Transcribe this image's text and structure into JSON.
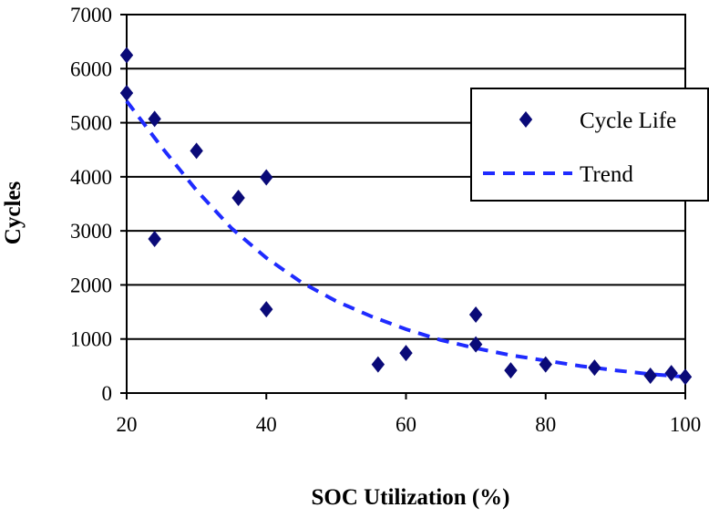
{
  "chart_data": {
    "type": "scatter",
    "title": "",
    "xlabel": "SOC Utilization (%)",
    "ylabel": "Cycles",
    "xlim": [
      20,
      100
    ],
    "ylim": [
      0,
      7000
    ],
    "x_ticks": [
      "20",
      "40",
      "60",
      "80",
      "100"
    ],
    "y_ticks": [
      "0",
      "1000",
      "2000",
      "3000",
      "4000",
      "5000",
      "6000",
      "7000"
    ],
    "grid": "horizontal",
    "legend_position": "top-right",
    "series": [
      {
        "name": "Cycle Life",
        "style": "diamond-markers",
        "color": "#0a0a78",
        "x": [
          20,
          20,
          24,
          24,
          30,
          36,
          40,
          40,
          56,
          60,
          70,
          70,
          75,
          80,
          87,
          95,
          98,
          100
        ],
        "y": [
          6250,
          5550,
          5070,
          2850,
          4480,
          3610,
          3990,
          1550,
          530,
          740,
          1450,
          900,
          420,
          530,
          470,
          320,
          370,
          300
        ]
      },
      {
        "name": "Trend",
        "style": "dashed-line",
        "color": "#1f2bff",
        "x": [
          20,
          25,
          30,
          35,
          40,
          45,
          50,
          55,
          60,
          65,
          70,
          75,
          80,
          85,
          90,
          95,
          100
        ],
        "y": [
          5400,
          4550,
          3750,
          3050,
          2500,
          2050,
          1700,
          1420,
          1180,
          980,
          830,
          700,
          600,
          500,
          420,
          350,
          300
        ]
      }
    ]
  }
}
